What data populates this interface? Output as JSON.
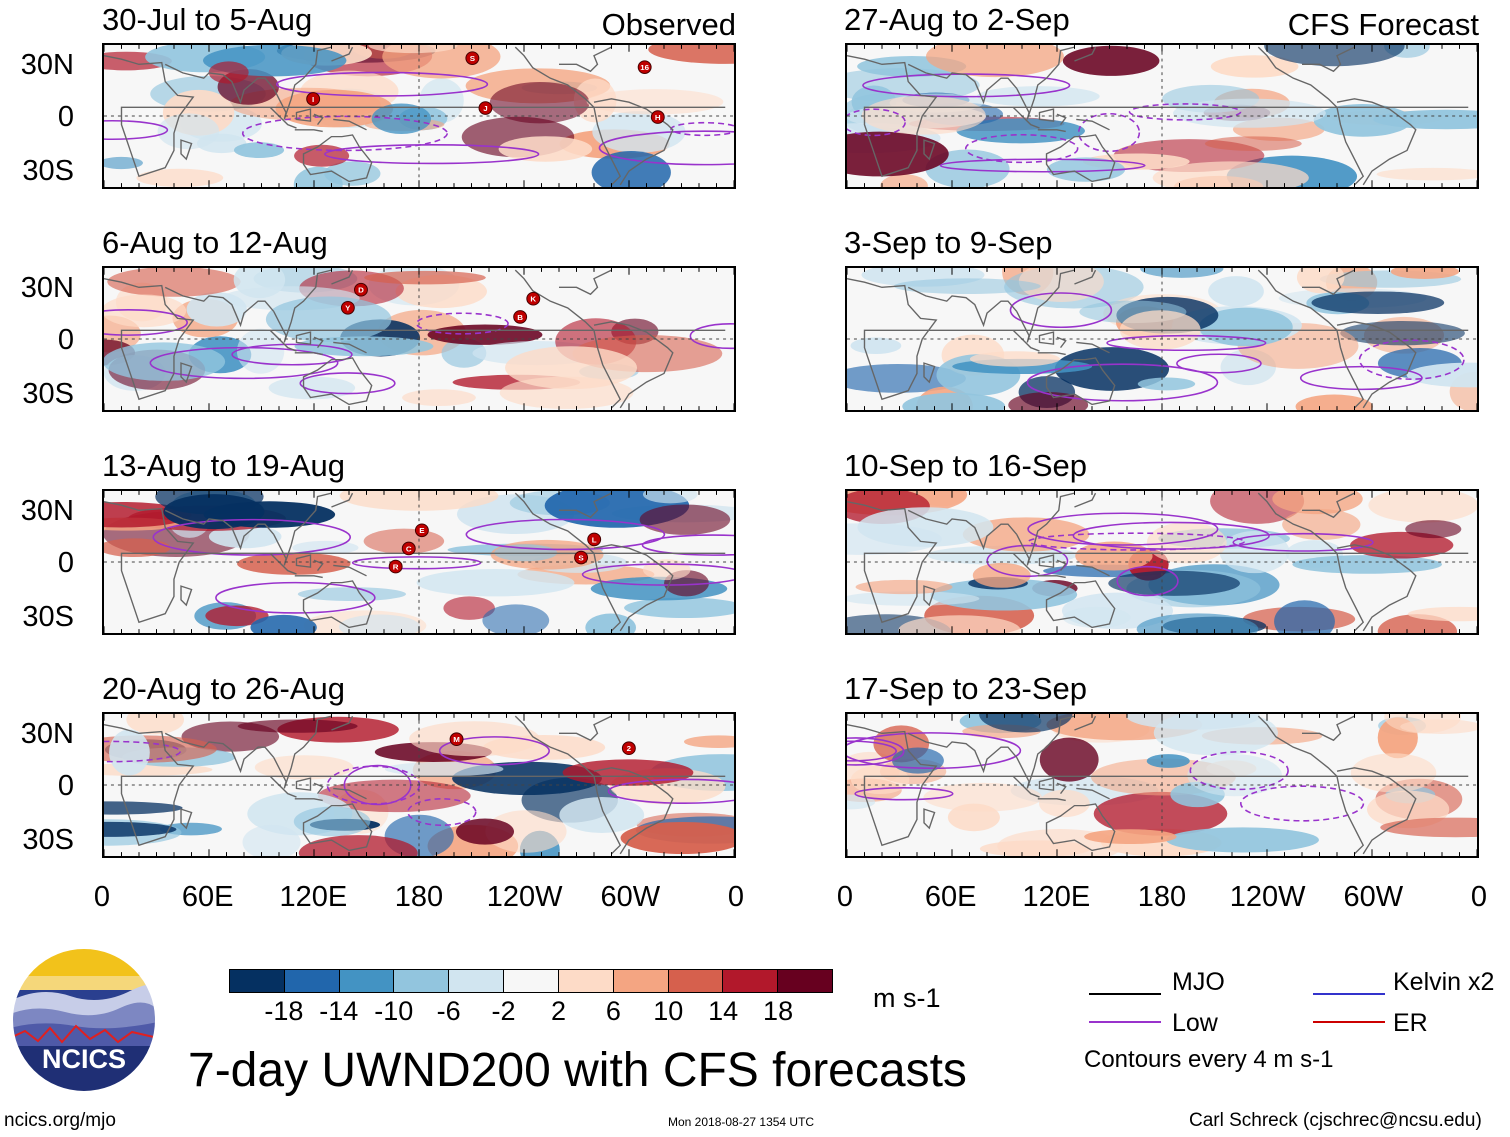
{
  "figure_title": "7-day UWND200 with CFS forecasts",
  "observed_label": "Observed",
  "forecast_label": "CFS Forecast",
  "panels_observed": [
    {
      "title": "30-Jul to 5-Aug",
      "storms": [
        "16",
        "S",
        "H",
        "J",
        "I"
      ]
    },
    {
      "title": "6-Aug to 12-Aug",
      "storms": [
        "B",
        "Y",
        "K",
        "D"
      ]
    },
    {
      "title": "13-Aug to 19-Aug",
      "storms": [
        "R",
        "S",
        "C",
        "L",
        "E"
      ]
    },
    {
      "title": "20-Aug to 26-Aug",
      "storms": [
        "2",
        "M"
      ]
    }
  ],
  "panels_forecast": [
    {
      "title": "27-Aug to 2-Sep"
    },
    {
      "title": "3-Sep to 9-Sep"
    },
    {
      "title": "10-Sep to 16-Sep"
    },
    {
      "title": "17-Sep to 23-Sep"
    }
  ],
  "lat_labels": [
    "30N",
    "0",
    "30S"
  ],
  "lon_labels": [
    "0",
    "60E",
    "120E",
    "180",
    "120W",
    "60W",
    "0"
  ],
  "colorbar": {
    "colors": [
      "#053061",
      "#2166ac",
      "#4393c3",
      "#92c5de",
      "#d1e5f0",
      "#f7f7f7",
      "#fddbc7",
      "#f4a582",
      "#d6604d",
      "#b2182b",
      "#67001f"
    ],
    "ticks": [
      "-18",
      "-14",
      "-10",
      "-6",
      "-2",
      "2",
      "6",
      "10",
      "14",
      "18"
    ],
    "unit": "m s-1"
  },
  "legend": [
    {
      "label": "MJO",
      "color": "#000000"
    },
    {
      "label": "Kelvin x2",
      "color": "#3333cc"
    },
    {
      "label": "Low",
      "color": "#9933cc"
    },
    {
      "label": "ER",
      "color": "#cc0000"
    }
  ],
  "contour_note": "Contours every 4 m s-1",
  "logo_text": "NCICS",
  "footer": {
    "url": "ncics.org/mjo",
    "timestamp": "Mon 2018-08-27 1354 UTC",
    "author": "Carl Schreck (cjschrec@ncsu.edu)"
  }
}
